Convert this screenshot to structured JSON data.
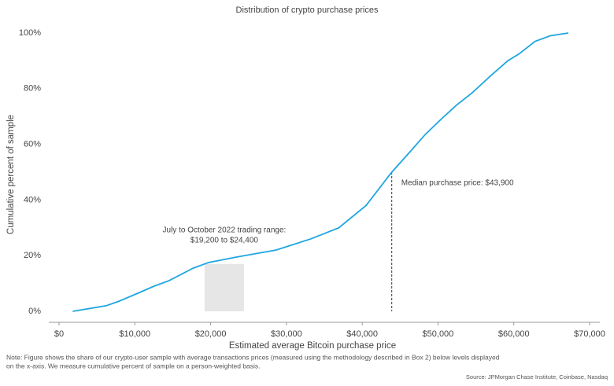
{
  "chart_data": {
    "type": "line",
    "title": "Distribution of crypto purchase prices",
    "xlabel": "Estimated average Bitcoin purchase price",
    "ylabel": "Cumulative percent of sample",
    "series": [
      {
        "name": "Cumulative percent of sample",
        "color": "#1fa6e0",
        "x": [
          1800,
          6200,
          7800,
          10400,
          12500,
          14500,
          17700,
          19700,
          23400,
          28600,
          33200,
          36900,
          40500,
          43900,
          46200,
          48300,
          50400,
          52400,
          54500,
          57100,
          59200,
          60700,
          62800,
          64800,
          67200
        ],
        "values": [
          0,
          2,
          3.5,
          6.5,
          9,
          11,
          15.5,
          17.5,
          19.5,
          22,
          26,
          30,
          38,
          50,
          57,
          63.5,
          69,
          74,
          78.5,
          85,
          90,
          92.5,
          97,
          99,
          100
        ]
      }
    ],
    "xlim": [
      0,
      70000
    ],
    "xticks": [
      {
        "value": 0,
        "label": "$0"
      },
      {
        "value": 10000,
        "label": "$10,000"
      },
      {
        "value": 20000,
        "label": "$20,000"
      },
      {
        "value": 30000,
        "label": "$30,000"
      },
      {
        "value": 40000,
        "label": "$40,000"
      },
      {
        "value": 50000,
        "label": "$50,000"
      },
      {
        "value": 60000,
        "label": "$60,000"
      },
      {
        "value": 70000,
        "label": "$70,000"
      }
    ],
    "ylim": [
      0,
      100
    ],
    "yticks": [
      {
        "value": 0,
        "label": "0%"
      },
      {
        "value": 20,
        "label": "20%"
      },
      {
        "value": 40,
        "label": "40%"
      },
      {
        "value": 60,
        "label": "60%"
      },
      {
        "value": 80,
        "label": "80%"
      },
      {
        "value": 100,
        "label": "100%"
      }
    ],
    "grid": false,
    "median": {
      "value": 43900,
      "label": "Median purchase price: $43,900"
    },
    "trading_range": {
      "range": [
        19200,
        24400
      ],
      "label": [
        "July to October 2022 trading range:",
        "$19,200 to $24,400"
      ]
    },
    "note": [
      "Note: Figure shows the share of our crypto-user sample with average transactions prices (measured using the methodology described in Box 2) below levels displayed",
      "on the x-axis. We measure cumulative percent of sample on a person-weighted basis."
    ],
    "source": "Source: JPMorgan Chase Institute, Coinbase, Nasdaq"
  }
}
